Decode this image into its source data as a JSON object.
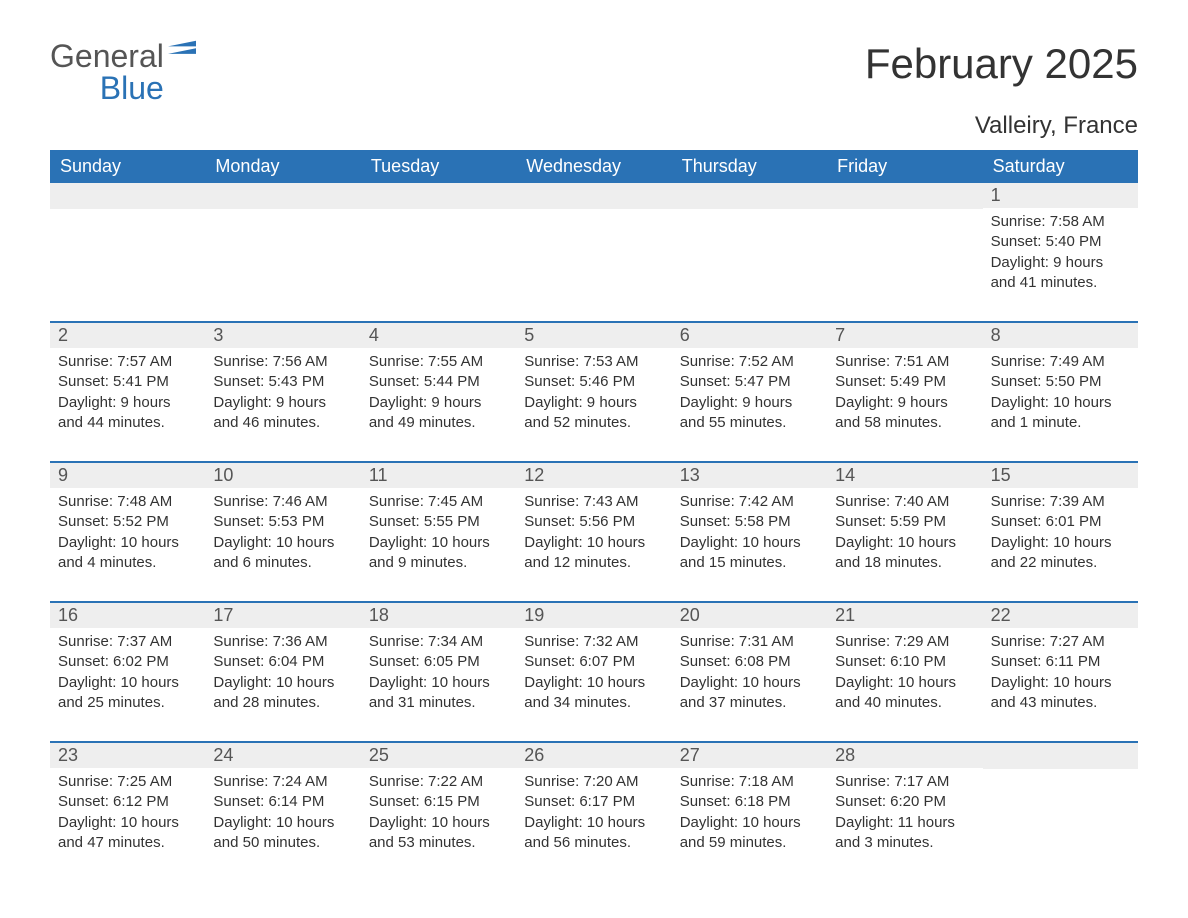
{
  "logo": {
    "general": "General",
    "blue": "Blue"
  },
  "title": "February 2025",
  "location": "Valleiry, France",
  "colors": {
    "header_bg": "#2a72b5",
    "header_text": "#ffffff",
    "daynum_bg": "#eeeeee",
    "daynum_text": "#555555",
    "body_text": "#333333",
    "rule": "#2a72b5",
    "page_bg": "#ffffff"
  },
  "day_headers": [
    "Sunday",
    "Monday",
    "Tuesday",
    "Wednesday",
    "Thursday",
    "Friday",
    "Saturday"
  ],
  "weeks": [
    [
      {
        "n": "",
        "sunrise": "",
        "sunset": "",
        "daylight": ""
      },
      {
        "n": "",
        "sunrise": "",
        "sunset": "",
        "daylight": ""
      },
      {
        "n": "",
        "sunrise": "",
        "sunset": "",
        "daylight": ""
      },
      {
        "n": "",
        "sunrise": "",
        "sunset": "",
        "daylight": ""
      },
      {
        "n": "",
        "sunrise": "",
        "sunset": "",
        "daylight": ""
      },
      {
        "n": "",
        "sunrise": "",
        "sunset": "",
        "daylight": ""
      },
      {
        "n": "1",
        "sunrise": "Sunrise: 7:58 AM",
        "sunset": "Sunset: 5:40 PM",
        "daylight": "Daylight: 9 hours and 41 minutes."
      }
    ],
    [
      {
        "n": "2",
        "sunrise": "Sunrise: 7:57 AM",
        "sunset": "Sunset: 5:41 PM",
        "daylight": "Daylight: 9 hours and 44 minutes."
      },
      {
        "n": "3",
        "sunrise": "Sunrise: 7:56 AM",
        "sunset": "Sunset: 5:43 PM",
        "daylight": "Daylight: 9 hours and 46 minutes."
      },
      {
        "n": "4",
        "sunrise": "Sunrise: 7:55 AM",
        "sunset": "Sunset: 5:44 PM",
        "daylight": "Daylight: 9 hours and 49 minutes."
      },
      {
        "n": "5",
        "sunrise": "Sunrise: 7:53 AM",
        "sunset": "Sunset: 5:46 PM",
        "daylight": "Daylight: 9 hours and 52 minutes."
      },
      {
        "n": "6",
        "sunrise": "Sunrise: 7:52 AM",
        "sunset": "Sunset: 5:47 PM",
        "daylight": "Daylight: 9 hours and 55 minutes."
      },
      {
        "n": "7",
        "sunrise": "Sunrise: 7:51 AM",
        "sunset": "Sunset: 5:49 PM",
        "daylight": "Daylight: 9 hours and 58 minutes."
      },
      {
        "n": "8",
        "sunrise": "Sunrise: 7:49 AM",
        "sunset": "Sunset: 5:50 PM",
        "daylight": "Daylight: 10 hours and 1 minute."
      }
    ],
    [
      {
        "n": "9",
        "sunrise": "Sunrise: 7:48 AM",
        "sunset": "Sunset: 5:52 PM",
        "daylight": "Daylight: 10 hours and 4 minutes."
      },
      {
        "n": "10",
        "sunrise": "Sunrise: 7:46 AM",
        "sunset": "Sunset: 5:53 PM",
        "daylight": "Daylight: 10 hours and 6 minutes."
      },
      {
        "n": "11",
        "sunrise": "Sunrise: 7:45 AM",
        "sunset": "Sunset: 5:55 PM",
        "daylight": "Daylight: 10 hours and 9 minutes."
      },
      {
        "n": "12",
        "sunrise": "Sunrise: 7:43 AM",
        "sunset": "Sunset: 5:56 PM",
        "daylight": "Daylight: 10 hours and 12 minutes."
      },
      {
        "n": "13",
        "sunrise": "Sunrise: 7:42 AM",
        "sunset": "Sunset: 5:58 PM",
        "daylight": "Daylight: 10 hours and 15 minutes."
      },
      {
        "n": "14",
        "sunrise": "Sunrise: 7:40 AM",
        "sunset": "Sunset: 5:59 PM",
        "daylight": "Daylight: 10 hours and 18 minutes."
      },
      {
        "n": "15",
        "sunrise": "Sunrise: 7:39 AM",
        "sunset": "Sunset: 6:01 PM",
        "daylight": "Daylight: 10 hours and 22 minutes."
      }
    ],
    [
      {
        "n": "16",
        "sunrise": "Sunrise: 7:37 AM",
        "sunset": "Sunset: 6:02 PM",
        "daylight": "Daylight: 10 hours and 25 minutes."
      },
      {
        "n": "17",
        "sunrise": "Sunrise: 7:36 AM",
        "sunset": "Sunset: 6:04 PM",
        "daylight": "Daylight: 10 hours and 28 minutes."
      },
      {
        "n": "18",
        "sunrise": "Sunrise: 7:34 AM",
        "sunset": "Sunset: 6:05 PM",
        "daylight": "Daylight: 10 hours and 31 minutes."
      },
      {
        "n": "19",
        "sunrise": "Sunrise: 7:32 AM",
        "sunset": "Sunset: 6:07 PM",
        "daylight": "Daylight: 10 hours and 34 minutes."
      },
      {
        "n": "20",
        "sunrise": "Sunrise: 7:31 AM",
        "sunset": "Sunset: 6:08 PM",
        "daylight": "Daylight: 10 hours and 37 minutes."
      },
      {
        "n": "21",
        "sunrise": "Sunrise: 7:29 AM",
        "sunset": "Sunset: 6:10 PM",
        "daylight": "Daylight: 10 hours and 40 minutes."
      },
      {
        "n": "22",
        "sunrise": "Sunrise: 7:27 AM",
        "sunset": "Sunset: 6:11 PM",
        "daylight": "Daylight: 10 hours and 43 minutes."
      }
    ],
    [
      {
        "n": "23",
        "sunrise": "Sunrise: 7:25 AM",
        "sunset": "Sunset: 6:12 PM",
        "daylight": "Daylight: 10 hours and 47 minutes."
      },
      {
        "n": "24",
        "sunrise": "Sunrise: 7:24 AM",
        "sunset": "Sunset: 6:14 PM",
        "daylight": "Daylight: 10 hours and 50 minutes."
      },
      {
        "n": "25",
        "sunrise": "Sunrise: 7:22 AM",
        "sunset": "Sunset: 6:15 PM",
        "daylight": "Daylight: 10 hours and 53 minutes."
      },
      {
        "n": "26",
        "sunrise": "Sunrise: 7:20 AM",
        "sunset": "Sunset: 6:17 PM",
        "daylight": "Daylight: 10 hours and 56 minutes."
      },
      {
        "n": "27",
        "sunrise": "Sunrise: 7:18 AM",
        "sunset": "Sunset: 6:18 PM",
        "daylight": "Daylight: 10 hours and 59 minutes."
      },
      {
        "n": "28",
        "sunrise": "Sunrise: 7:17 AM",
        "sunset": "Sunset: 6:20 PM",
        "daylight": "Daylight: 11 hours and 3 minutes."
      },
      {
        "n": "",
        "sunrise": "",
        "sunset": "",
        "daylight": ""
      }
    ]
  ]
}
